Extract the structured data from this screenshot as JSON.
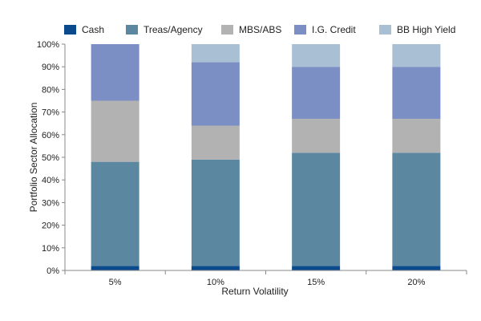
{
  "chart_data": {
    "type": "bar",
    "stacked": true,
    "title": "",
    "xlabel": "Return Volatility",
    "ylabel": "Portfolio Sector Allocation",
    "categories": [
      "5%",
      "10%",
      "15%",
      "20%"
    ],
    "ylim": [
      0,
      100
    ],
    "yticks": [
      0,
      10,
      20,
      30,
      40,
      50,
      60,
      70,
      80,
      90,
      100
    ],
    "ytick_labels": [
      "0%",
      "10%",
      "20%",
      "30%",
      "40%",
      "50%",
      "60%",
      "70%",
      "80%",
      "90%",
      "100%"
    ],
    "legend_position": "top",
    "grid": false,
    "series": [
      {
        "name": "Cash",
        "color": "#0b4a8c",
        "values": [
          2,
          2,
          2,
          2
        ]
      },
      {
        "name": "Treas/Agency",
        "color": "#5b88a0",
        "values": [
          46,
          47,
          50,
          50
        ]
      },
      {
        "name": "MBS/ABS",
        "color": "#b2b2b3",
        "values": [
          27,
          15,
          15,
          15
        ]
      },
      {
        "name": "I.G. Credit",
        "color": "#7b8fc4",
        "values": [
          25,
          28,
          23,
          23
        ]
      },
      {
        "name": "BB High Yield",
        "color": "#a9c0d4",
        "values": [
          0,
          8,
          10,
          10
        ]
      }
    ]
  }
}
